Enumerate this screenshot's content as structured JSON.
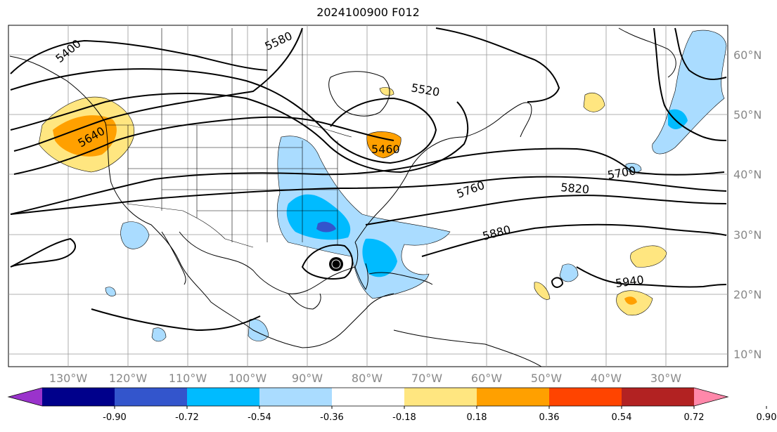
{
  "title": "2024100900 F012",
  "longitude_labels": [
    "130°W",
    "120°W",
    "110°W",
    "100°W",
    "90°W",
    "80°W",
    "70°W",
    "60°W",
    "50°W",
    "40°W",
    "30°W"
  ],
  "latitude_labels": [
    "60°N",
    "50°N",
    "40°N",
    "30°N",
    "20°N",
    "10°N"
  ],
  "contour_labels": [
    "5400",
    "5460",
    "5520",
    "5580",
    "5640",
    "5700",
    "5760",
    "5820",
    "5880",
    "5940"
  ],
  "colorbar": {
    "ticks": [
      "-0.90",
      "-0.72",
      "-0.54",
      "-0.36",
      "-0.18",
      "0.18",
      "0.36",
      "0.54",
      "0.72",
      "0.90"
    ],
    "colors": [
      "#9a33cc",
      "#00008b",
      "#3355cc",
      "#00bbff",
      "#aadcff",
      "#ffffff",
      "#ffe680",
      "#ffa000",
      "#ff4400",
      "#b22222",
      "#ff88aa"
    ]
  }
}
